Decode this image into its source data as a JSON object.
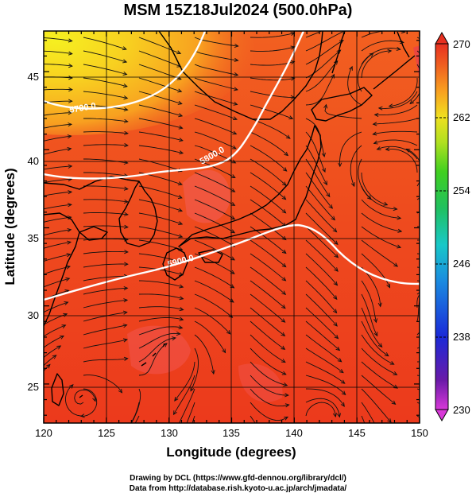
{
  "title": "MSM 15Z18Jul2024 (500.0hPa)",
  "map": {
    "xlabel": "Longitude (degrees)",
    "ylabel": "Latitude  (degrees)",
    "lon_range": [
      120,
      150
    ],
    "lat_range": [
      22.5,
      47.6
    ],
    "lon_ticks": [
      "120",
      "125",
      "130",
      "135",
      "140",
      "145",
      "150"
    ],
    "lat_ticks": [
      "25",
      "30",
      "35",
      "40",
      "45"
    ],
    "contour_labels": [
      "5700.0",
      "5800.0",
      "5900.0"
    ],
    "colors": {
      "background_field": "#f0421e",
      "land_tint": "#f4667a",
      "contour": "#ffffff"
    }
  },
  "colorbar": {
    "min": 230,
    "max": 270,
    "tick_labels": [
      "270",
      "262",
      "254",
      "246",
      "238",
      "230"
    ],
    "colors": [
      "#d838d8",
      "#6a1aa8",
      "#1a2ad8",
      "#1a8ae0",
      "#18c8c8",
      "#20c060",
      "#40d020",
      "#b0e020",
      "#f0e020",
      "#f8a020",
      "#f06020",
      "#e83020"
    ]
  },
  "credits": {
    "line1": "Drawing by DCL (https://www.gfd-dennou.org/library/dcl/)",
    "line2": "Data from http://database.rish.kyoto-u.ac.jp/arch/jmadata/"
  }
}
